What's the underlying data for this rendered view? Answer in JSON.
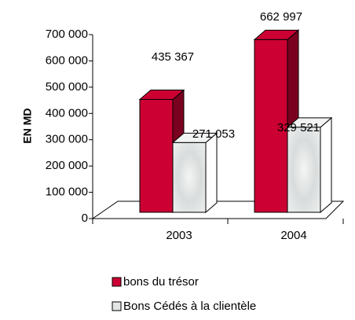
{
  "chart_data": {
    "type": "bar3d",
    "y_label": "EN MD",
    "categories": [
      "2003",
      "2004"
    ],
    "series": [
      {
        "name": "bons du trésor",
        "color": "#cc0033",
        "values": [
          435367,
          662997
        ],
        "value_labels": [
          "435 367",
          "662 997"
        ]
      },
      {
        "name": "Bons Cédés à la clientèle",
        "color": "#e4e6e6",
        "values": [
          271053,
          329521
        ],
        "value_labels": [
          "271 053",
          "329 521"
        ]
      }
    ],
    "ylim": [
      0,
      700000
    ],
    "yticks": [
      {
        "value": 0,
        "label": "0"
      },
      {
        "value": 100000,
        "label": "100 000"
      },
      {
        "value": 200000,
        "label": "200 000"
      },
      {
        "value": 300000,
        "label": "300 000"
      },
      {
        "value": 400000,
        "label": "400 000"
      },
      {
        "value": 500000,
        "label": "500 000"
      },
      {
        "value": 600000,
        "label": "600 000"
      },
      {
        "value": 700000,
        "label": "700 000"
      }
    ],
    "grid": false
  }
}
